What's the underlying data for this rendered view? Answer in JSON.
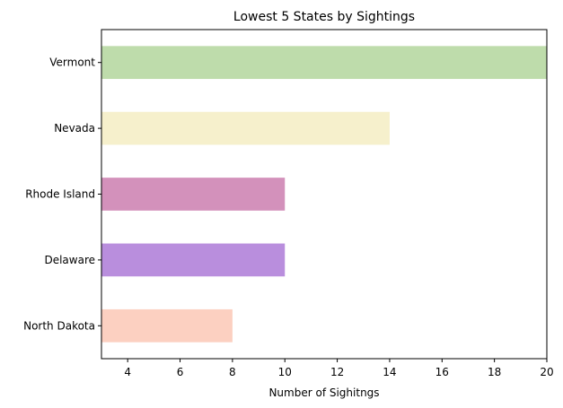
{
  "chart_data": {
    "type": "bar",
    "orientation": "horizontal",
    "title": "Lowest 5 States by Sightings",
    "xlabel": "Number of Sighitngs",
    "ylabel": "",
    "categories": [
      "North Dakota",
      "Delaware",
      "Rhode Island",
      "Nevada",
      "Vermont"
    ],
    "values": [
      8,
      10,
      10,
      14,
      20
    ],
    "colors": [
      "#fcd0c1",
      "#b98edd",
      "#d391bb",
      "#f6f0cc",
      "#bedcab"
    ],
    "xlim": [
      3,
      20
    ],
    "xticks": [
      4,
      6,
      8,
      10,
      12,
      14,
      16,
      18,
      20
    ],
    "grid": false,
    "legend": "none"
  }
}
